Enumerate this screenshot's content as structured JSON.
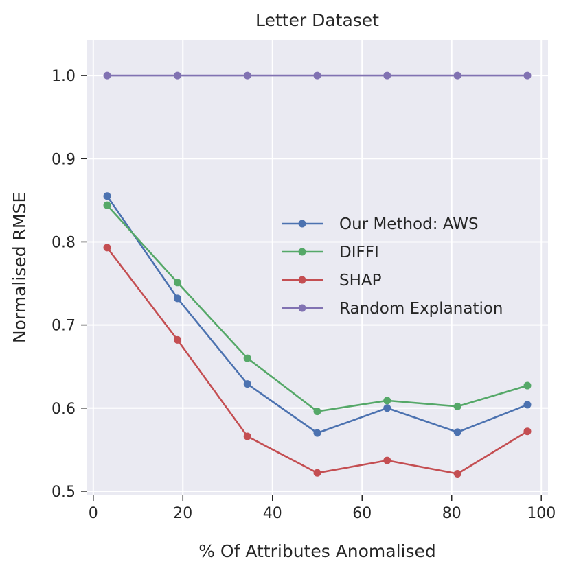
{
  "chart_data": {
    "type": "line",
    "title": "Letter Dataset",
    "xlabel": "% Of Attributes Anomalised",
    "ylabel": "Normalised RMSE",
    "xlim": [
      -1.5,
      101.5
    ],
    "ylim": [
      0.495,
      1.043
    ],
    "x_ticks": [
      0,
      20,
      40,
      60,
      80,
      100
    ],
    "x_tick_labels": [
      "0",
      "20",
      "40",
      "60",
      "80",
      "100"
    ],
    "y_ticks": [
      0.5,
      0.6,
      0.7,
      0.8,
      0.9,
      1.0
    ],
    "y_tick_labels": [
      "0.5",
      "0.6",
      "0.7",
      "0.8",
      "0.9",
      "1.0"
    ],
    "x": [
      3.1,
      18.8,
      34.4,
      50.0,
      65.6,
      81.3,
      96.9
    ],
    "grid": true,
    "legend_position": "center-right",
    "series": [
      {
        "name": "Our Method: AWS",
        "color": "#4c72b0",
        "values": [
          0.855,
          0.732,
          0.629,
          0.57,
          0.6,
          0.571,
          0.604
        ]
      },
      {
        "name": "DIFFI",
        "color": "#55a868",
        "values": [
          0.844,
          0.751,
          0.66,
          0.596,
          0.609,
          0.602,
          0.627
        ]
      },
      {
        "name": "SHAP",
        "color": "#c44e52",
        "values": [
          0.793,
          0.682,
          0.566,
          0.522,
          0.537,
          0.521,
          0.572
        ]
      },
      {
        "name": "Random Explanation",
        "color": "#8172b2",
        "values": [
          1.0,
          1.0,
          1.0,
          1.0,
          1.0,
          1.0,
          1.0
        ]
      }
    ]
  }
}
